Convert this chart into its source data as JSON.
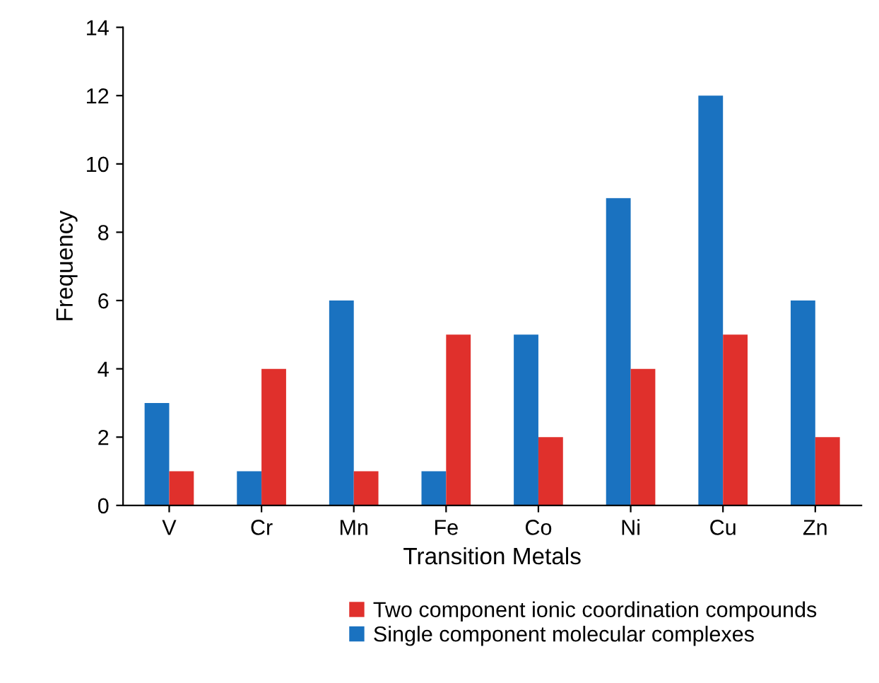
{
  "chart_data": {
    "type": "bar",
    "xlabel": "Transition Metals",
    "ylabel": "Frequency",
    "categories": [
      "V",
      "Cr",
      "Mn",
      "Fe",
      "Co",
      "Ni",
      "Cu",
      "Zn"
    ],
    "series": [
      {
        "name": "Single component molecular complexes",
        "color": "#1a72c0",
        "values": [
          3,
          1,
          6,
          1,
          5,
          9,
          12,
          6
        ]
      },
      {
        "name": "Two component ionic coordination compounds",
        "color": "#e0302c",
        "values": [
          1,
          4,
          1,
          5,
          2,
          4,
          5,
          2
        ]
      }
    ],
    "ylim": [
      0,
      14
    ],
    "yticks": [
      0,
      2,
      4,
      6,
      8,
      10,
      12,
      14
    ],
    "grid": false,
    "legend": "bottom"
  }
}
